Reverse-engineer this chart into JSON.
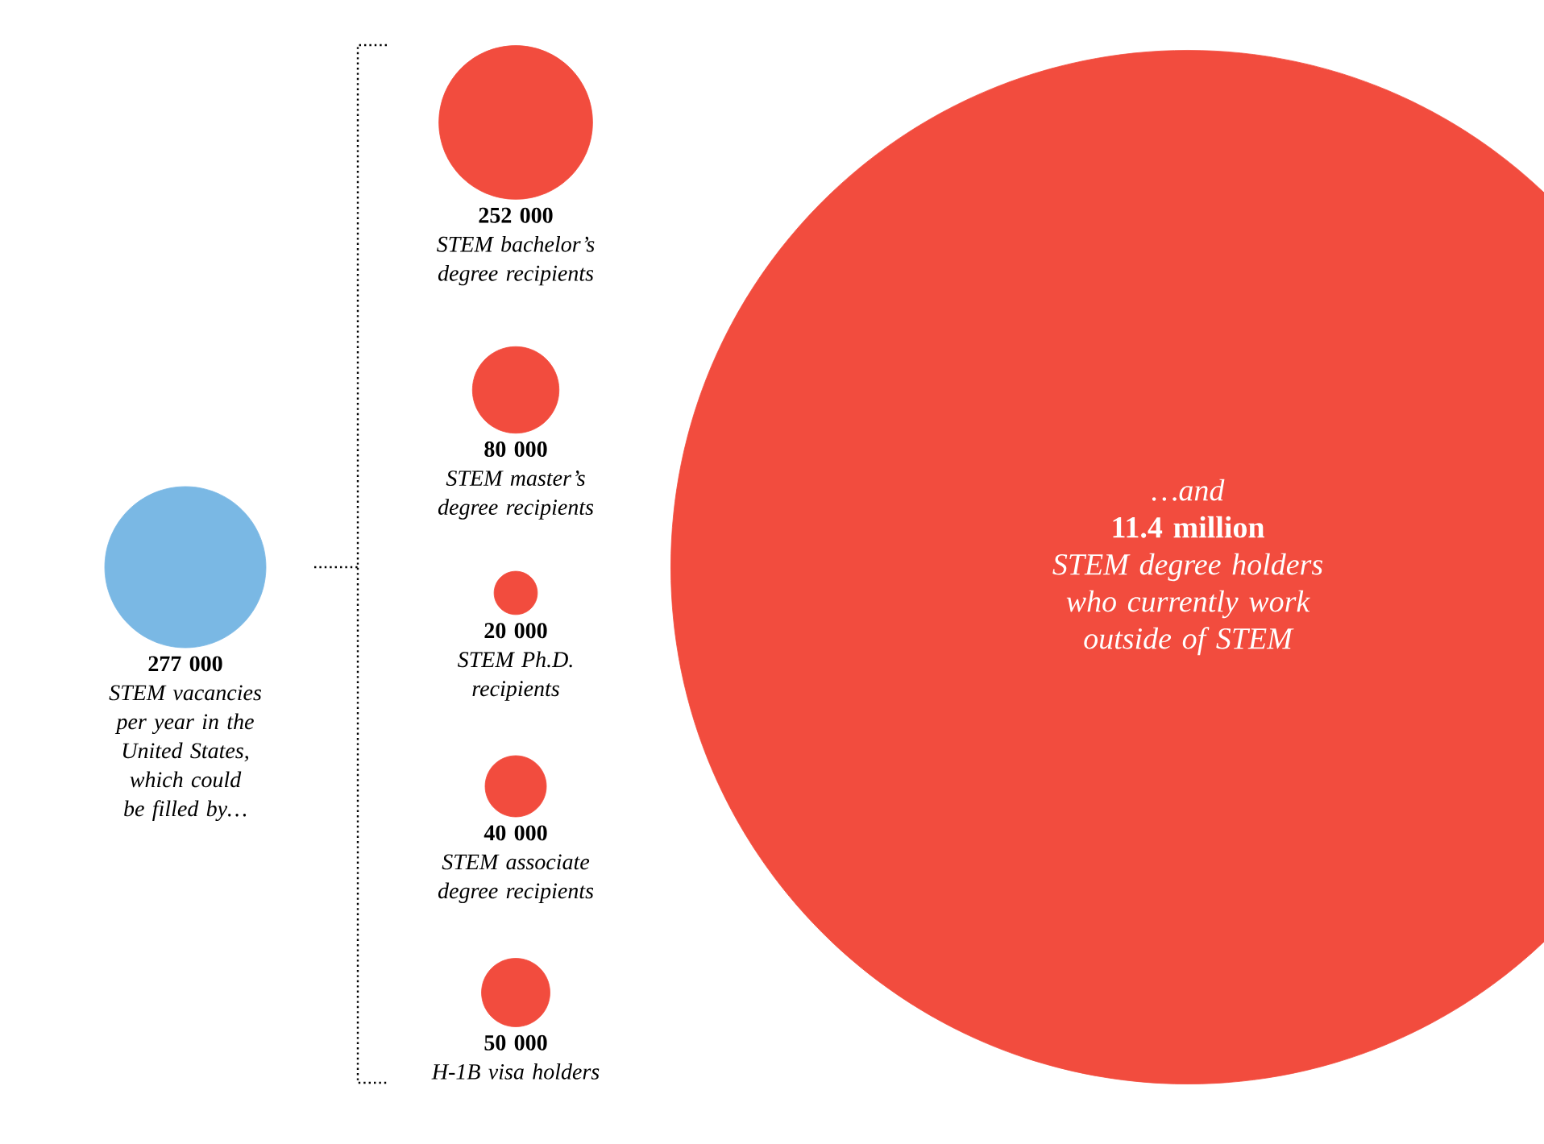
{
  "chart_data": {
    "type": "other",
    "categories": [
      "STEM vacancies per year in the United States, which could be filled by…",
      "STEM bachelor’s degree recipients",
      "STEM master’s degree recipients",
      "STEM Ph.D. recipients",
      "STEM associate degree recipients",
      "H-1B visa holders",
      "STEM degree holders who currently work outside of STEM"
    ],
    "values": [
      277000,
      252000,
      80000,
      20000,
      40000,
      50000,
      11400000
    ],
    "value_labels": [
      "277 000",
      "252 000",
      "80 000",
      "20 000",
      "40 000",
      "50 000",
      "11.4 million"
    ],
    "colors": [
      "#7ab8e4",
      "#f24c3e",
      "#f24c3e",
      "#f24c3e",
      "#f24c3e",
      "#f24c3e",
      "#f24c3e"
    ],
    "annotations": [
      "…and"
    ]
  }
}
